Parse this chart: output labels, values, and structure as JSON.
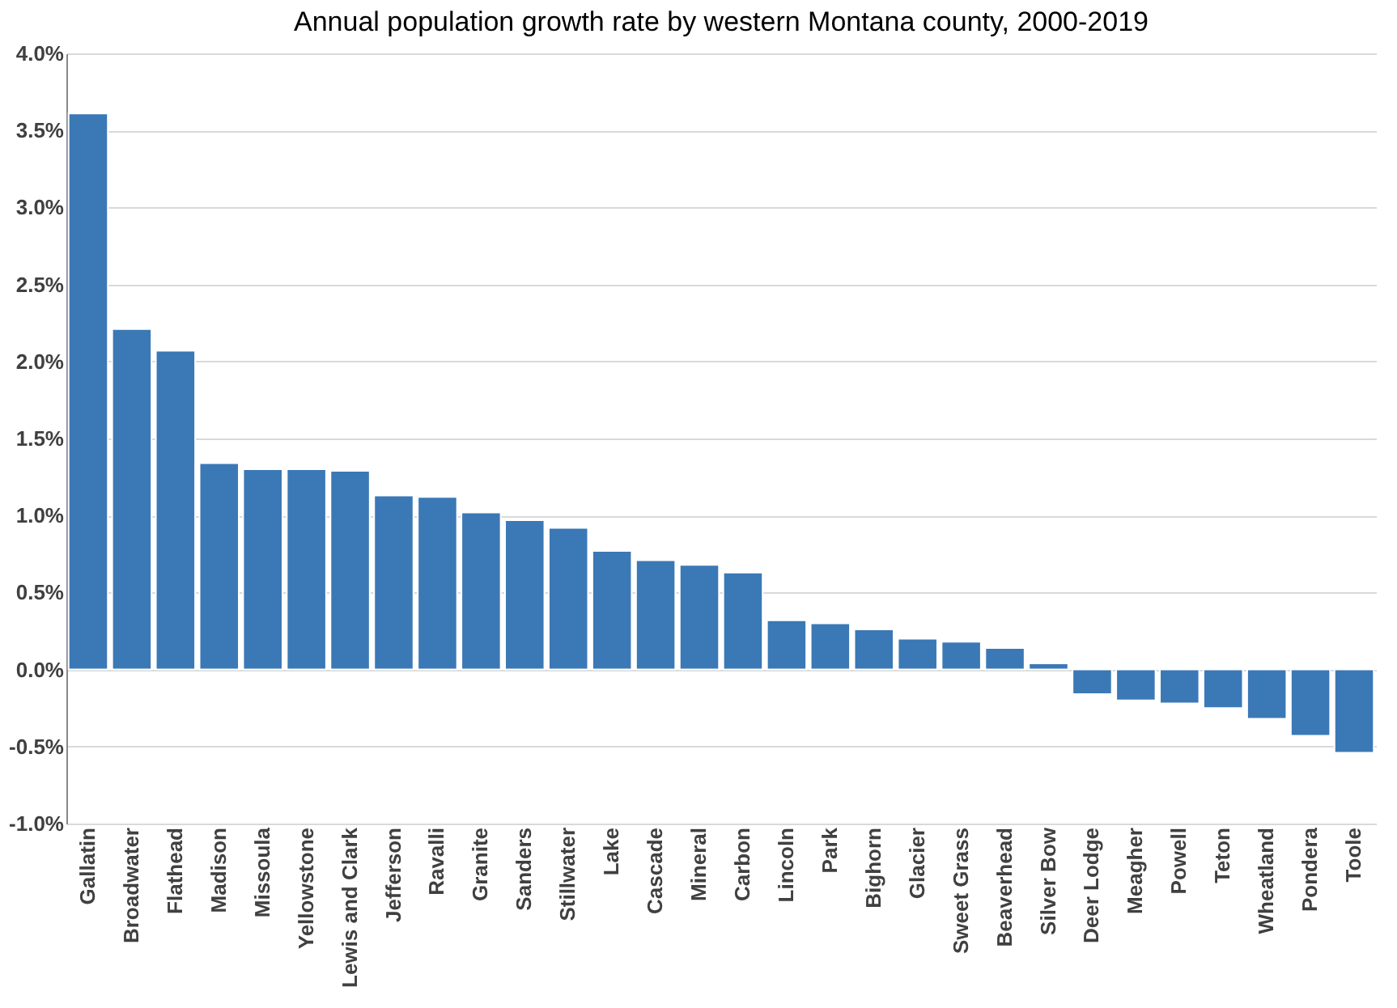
{
  "chart_data": {
    "type": "bar",
    "title": "Annual population growth rate by western Montana county, 2000-2019",
    "categories": [
      "Gallatin",
      "Broadwater",
      "Flathead",
      "Madison",
      "Missoula",
      "Yellowstone",
      "Lewis and Clark",
      "Jefferson",
      "Ravalli",
      "Granite",
      "Sanders",
      "Stillwater",
      "Lake",
      "Cascade",
      "Mineral",
      "Carbon",
      "Lincoln",
      "Park",
      "Bighorn",
      "Glacier",
      "Sweet Grass",
      "Beaverhead",
      "Silver Bow",
      "Deer Lodge",
      "Meagher",
      "Powell",
      "Teton",
      "Wheatland",
      "Pondera",
      "Toole"
    ],
    "values": [
      3.61,
      2.21,
      2.07,
      1.34,
      1.3,
      1.3,
      1.29,
      1.13,
      1.12,
      1.02,
      0.97,
      0.92,
      0.77,
      0.71,
      0.68,
      0.63,
      0.32,
      0.3,
      0.26,
      0.2,
      0.18,
      0.14,
      0.04,
      -0.16,
      -0.2,
      -0.22,
      -0.25,
      -0.32,
      -0.43,
      -0.54
    ],
    "color": "#3b78b6",
    "ylim": [
      -1.0,
      4.0
    ],
    "yticks": [
      {
        "value": -1.0,
        "label": "-1.0%"
      },
      {
        "value": -0.5,
        "label": "-0.5%"
      },
      {
        "value": 0.0,
        "label": "0.0%"
      },
      {
        "value": 0.5,
        "label": "0.5%"
      },
      {
        "value": 1.0,
        "label": "1.0%"
      },
      {
        "value": 1.5,
        "label": "1.5%"
      },
      {
        "value": 2.0,
        "label": "2.0%"
      },
      {
        "value": 2.5,
        "label": "2.5%"
      },
      {
        "value": 3.0,
        "label": "3.0%"
      },
      {
        "value": 3.5,
        "label": "3.5%"
      },
      {
        "value": 4.0,
        "label": "4.0%"
      }
    ],
    "grid": "y"
  }
}
